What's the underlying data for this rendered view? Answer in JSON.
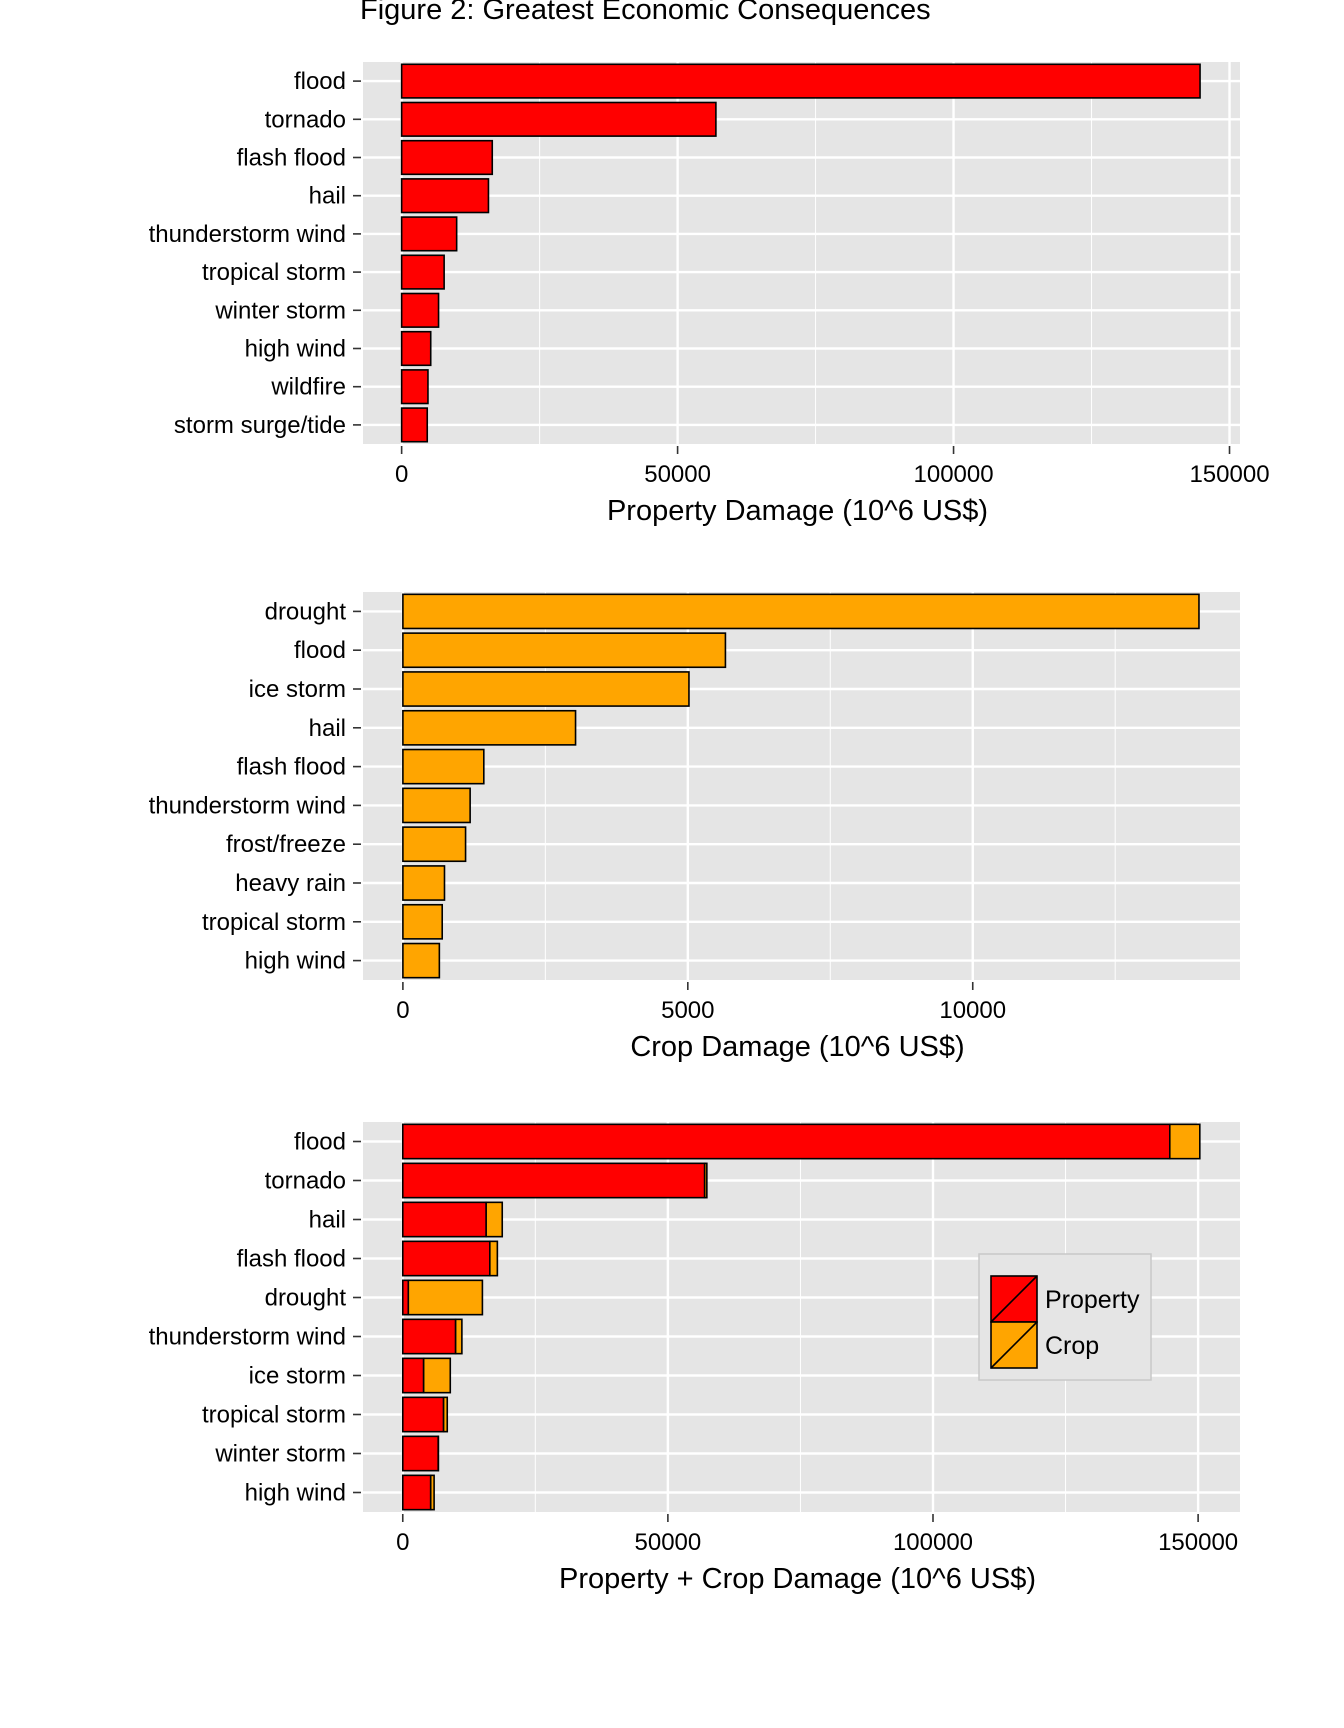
{
  "figure_title": "Figure 2: Greatest Economic Consequences",
  "colors": {
    "property": "#ff0000",
    "crop": "#ffa500",
    "panel_bg": "#e5e5e5",
    "grid": "#ffffff",
    "bar_stroke": "#000000"
  },
  "chart_data": [
    {
      "type": "bar",
      "orientation": "horizontal",
      "title": "",
      "xlabel": "Property Damage (10^6 US$)",
      "ylabel": "",
      "categories": [
        "flood",
        "tornado",
        "flash flood",
        "hail",
        "thunderstorm wind",
        "tropical storm",
        "winter storm",
        "high wind",
        "wildfire",
        "storm surge/tide"
      ],
      "series": [
        {
          "color": "#ff0000",
          "values": [
            144660,
            56940,
            16420,
            15730,
            9970,
            7700,
            6690,
            5270,
            4770,
            4640
          ]
        }
      ],
      "xlim": [
        -7000,
        151900
      ],
      "ticks": [
        0,
        50000,
        100000,
        150000
      ],
      "tick_labels": [
        "0",
        "50000",
        "100000",
        "150000"
      ],
      "grid": true
    },
    {
      "type": "bar",
      "orientation": "horizontal",
      "title": "",
      "xlabel": "Crop Damage (10^6 US$)",
      "ylabel": "",
      "categories": [
        "drought",
        "flood",
        "ice storm",
        "hail",
        "flash flood",
        "thunderstorm wind",
        "frost/freeze",
        "heavy rain",
        "tropical storm",
        "high wind"
      ],
      "series": [
        {
          "color": "#ffa500",
          "values": [
            13970,
            5660,
            5020,
            3030,
            1420,
            1180,
            1100,
            730,
            690,
            640
          ]
        }
      ],
      "xlim": [
        -700,
        14690
      ],
      "ticks": [
        0,
        5000,
        10000
      ],
      "tick_labels": [
        "0",
        "5000",
        "10000"
      ],
      "grid": true
    },
    {
      "type": "bar",
      "stacked": true,
      "orientation": "horizontal",
      "title": "",
      "xlabel": "Property + Crop Damage (10^6 US$)",
      "ylabel": "",
      "categories": [
        "flood",
        "tornado",
        "hail",
        "flash flood",
        "drought",
        "thunderstorm wind",
        "ice storm",
        "tropical storm",
        "winter storm",
        "high wind"
      ],
      "series": [
        {
          "name": "Property",
          "color": "#ff0000",
          "values": [
            144660,
            56940,
            15730,
            16420,
            1050,
            9970,
            3940,
            7700,
            6690,
            5270
          ]
        },
        {
          "name": "Crop",
          "color": "#ffa500",
          "values": [
            5660,
            410,
            3030,
            1420,
            13970,
            1180,
            5020,
            690,
            30,
            640
          ]
        }
      ],
      "xlim": [
        -7500,
        157900
      ],
      "ticks": [
        0,
        50000,
        100000,
        150000
      ],
      "tick_labels": [
        "0",
        "50000",
        "100000",
        "150000"
      ],
      "grid": true,
      "legend": {
        "position": "right",
        "entries": [
          "Property",
          "Crop"
        ]
      }
    }
  ]
}
